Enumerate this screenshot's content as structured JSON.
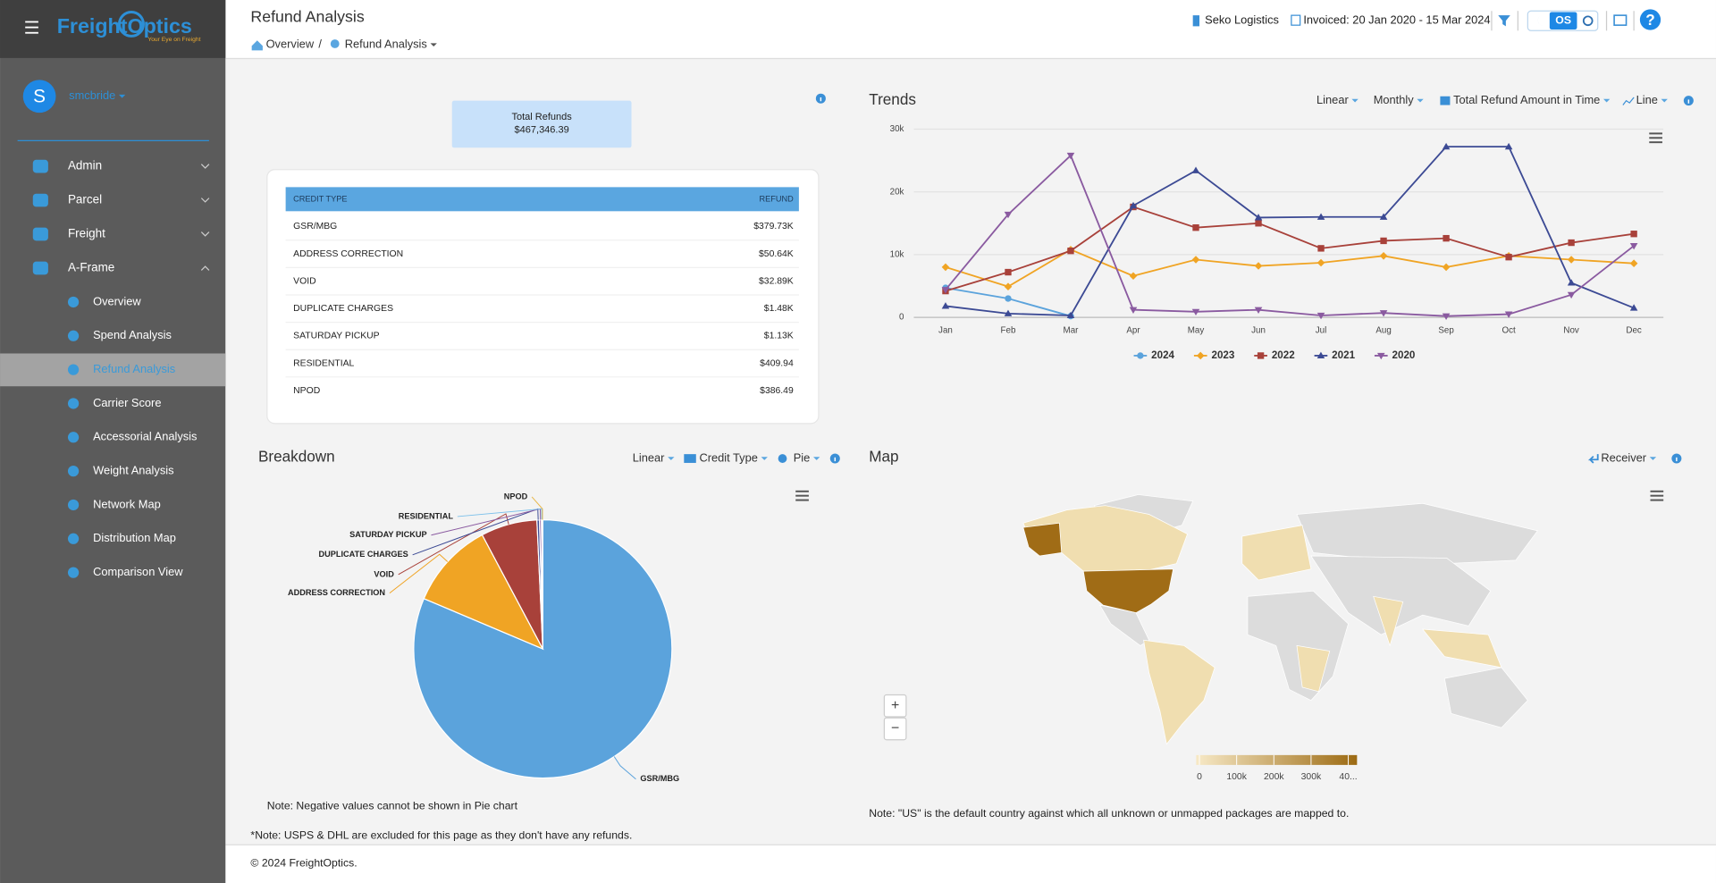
{
  "sidebar": {
    "logo": "FreightOptics",
    "tagline": "Your Eye on Freight",
    "user_initial": "S",
    "user": "smcbride",
    "menu": [
      "Admin",
      "Parcel",
      "Freight",
      "A-Frame"
    ],
    "submenu": [
      "Overview",
      "Spend Analysis",
      "Refund Analysis",
      "Carrier Score",
      "Accessorial Analysis",
      "Weight Analysis",
      "Network Map",
      "Distribution Map",
      "Comparison View"
    ]
  },
  "header": {
    "title": "Refund Analysis",
    "breadcrumb": [
      "Overview",
      "/",
      "Refund Analysis"
    ],
    "client": "Seko Logistics",
    "invoiced": "Invoiced: 20 Jan 2020 - 15 Mar 2024",
    "theme": "OS",
    "help": "?"
  },
  "summary": {
    "label": "Total Refunds",
    "value": "$467,346.39"
  },
  "table": {
    "header": [
      "CREDIT TYPE",
      "REFUND"
    ],
    "rows": [
      [
        "GSR/MBG",
        "$379.73K"
      ],
      [
        "ADDRESS CORRECTION",
        "$50.64K"
      ],
      [
        "VOID",
        "$32.89K"
      ],
      [
        "DUPLICATE CHARGES",
        "$1.48K"
      ],
      [
        "SATURDAY PICKUP",
        "$1.13K"
      ],
      [
        "RESIDENTIAL",
        "$409.94"
      ],
      [
        "NPOD",
        "$386.49"
      ]
    ]
  },
  "trends_controls": [
    "Linear",
    "Monthly",
    "Total Refund Amount in Time",
    "Line"
  ],
  "breakdown_controls": [
    "Linear",
    "Credit Type",
    "Pie"
  ],
  "chart_data": [
    {
      "type": "line",
      "title": "Trends",
      "categories": [
        "Jan",
        "Feb",
        "Mar",
        "Apr",
        "May",
        "Jun",
        "Jul",
        "Aug",
        "Sep",
        "Oct",
        "Nov",
        "Dec"
      ],
      "ylim": [
        0,
        30000
      ],
      "yticks": [
        0,
        {
          "value": 10000,
          "label": "10k"
        },
        {
          "value": 20000,
          "label": "20k"
        },
        {
          "value": 30000,
          "label": "30k"
        }
      ],
      "grid": true,
      "series": [
        {
          "name": "2024",
          "color": "#5ba3dc",
          "marker": "circle",
          "values": [
            4700,
            3000,
            200,
            null,
            null,
            null,
            null,
            null,
            null,
            null,
            null,
            null
          ]
        },
        {
          "name": "2023",
          "color": "#f0a424",
          "marker": "diamond",
          "values": [
            8000,
            4900,
            10800,
            6600,
            9200,
            8200,
            8700,
            9800,
            8000,
            9800,
            9200,
            8600
          ]
        },
        {
          "name": "2022",
          "color": "#a8413a",
          "marker": "square",
          "values": [
            4200,
            7200,
            10600,
            17600,
            14300,
            15000,
            11000,
            12200,
            12600,
            9600,
            11900,
            13300
          ]
        },
        {
          "name": "2021",
          "color": "#3c4a94",
          "marker": "triangle",
          "values": [
            1800,
            600,
            300,
            17800,
            23400,
            15900,
            16000,
            16000,
            27200,
            27200,
            5500,
            1500
          ]
        },
        {
          "name": "2020",
          "color": "#8a5aa0",
          "marker": "triangle-down",
          "values": [
            4400,
            16400,
            25800,
            1200,
            900,
            1200,
            300,
            700,
            200,
            500,
            3600,
            11400
          ]
        }
      ]
    },
    {
      "type": "pie",
      "title": "Breakdown",
      "categories": [
        "GSR/MBG",
        "ADDRESS CORRECTION",
        "VOID",
        "DUPLICATE CHARGES",
        "SATURDAY PICKUP",
        "RESIDENTIAL",
        "NPOD"
      ],
      "values": [
        379730,
        50640,
        32890,
        1480,
        1130,
        409.94,
        386.49
      ],
      "colors": [
        "#5ba3dc",
        "#f0a424",
        "#a8413a",
        "#3c4a94",
        "#8a5aa0",
        "#7cc0ea",
        "#e8b84b"
      ]
    }
  ],
  "breakdown_note": "Note: Negative values cannot be shown in Pie chart",
  "page_note": "*Note: USPS & DHL are excluded for this page as they don't have any refunds.",
  "map": {
    "title": "Map",
    "control": "Receiver",
    "zoom": [
      "+",
      "−"
    ],
    "legend_lim": [
      0,
      400000
    ],
    "legend_ticks": [
      0,
      {
        "value": 100000,
        "label": "100k"
      },
      {
        "value": 200000,
        "label": "200k"
      },
      {
        "value": 300000,
        "label": "300k"
      },
      {
        "value": 400000,
        "label": "40..."
      }
    ],
    "note": "Note: \"US\" is the default country against which all unknown or unmapped packages are mapped to."
  },
  "footer": "© 2024 FreightOptics."
}
